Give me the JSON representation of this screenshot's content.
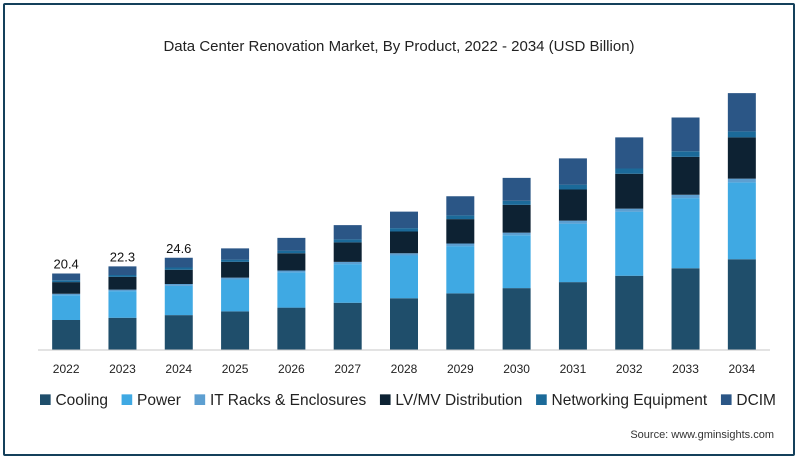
{
  "chart_data": {
    "type": "bar",
    "stacked": true,
    "title": "Data Center Renovation Market, By Product, 2022 - 2034 (USD Billion)",
    "xlabel": "",
    "ylabel": "",
    "categories": [
      "2022",
      "2023",
      "2024",
      "2025",
      "2026",
      "2027",
      "2028",
      "2029",
      "2030",
      "2031",
      "2032",
      "2033",
      "2034"
    ],
    "totals": [
      20.4,
      22.3,
      24.6,
      27.1,
      29.9,
      33.3,
      36.9,
      41.0,
      45.9,
      51.1,
      56.7,
      62.0,
      68.5
    ],
    "total_labels": [
      "20.4",
      "22.3",
      "24.6",
      "",
      "",
      "",
      "",
      "",
      "",
      "",
      "",
      "",
      ""
    ],
    "ylim": [
      0,
      72
    ],
    "grid": false,
    "legend_position": "bottom",
    "series": [
      {
        "name": "Cooling",
        "color": "#1f4e6b",
        "values": [
          8.0,
          8.6,
          9.3,
          10.3,
          11.3,
          12.6,
          13.8,
          15.1,
          16.5,
          18.1,
          19.8,
          21.8,
          24.2
        ]
      },
      {
        "name": "Power",
        "color": "#3fa9e3",
        "values": [
          6.6,
          7.1,
          7.8,
          8.5,
          9.4,
          10.3,
          11.4,
          12.6,
          14.1,
          15.6,
          17.1,
          18.7,
          20.5
        ]
      },
      {
        "name": "IT Racks & Enclosures",
        "color": "#5d9fd1",
        "values": [
          0.4,
          0.4,
          0.5,
          0.5,
          0.5,
          0.6,
          0.6,
          0.7,
          0.7,
          0.8,
          0.8,
          0.9,
          1.0
        ]
      },
      {
        "name": "LV/MV Distribution",
        "color": "#0d2233",
        "values": [
          3.1,
          3.4,
          3.8,
          4.2,
          4.6,
          5.2,
          5.8,
          6.5,
          7.4,
          8.3,
          9.3,
          10.1,
          11.0
        ]
      },
      {
        "name": "Networking Equipment",
        "color": "#1b6a99",
        "values": [
          0.5,
          0.5,
          0.6,
          0.6,
          0.7,
          0.8,
          0.9,
          1.0,
          1.1,
          1.3,
          1.4,
          1.5,
          1.6
        ]
      },
      {
        "name": "DCIM",
        "color": "#2b5686",
        "values": [
          1.8,
          2.3,
          2.6,
          3.0,
          3.4,
          3.8,
          4.4,
          5.1,
          6.1,
          7.0,
          8.3,
          9.0,
          10.2
        ]
      }
    ]
  },
  "source": "Source: www.gminsights.com"
}
